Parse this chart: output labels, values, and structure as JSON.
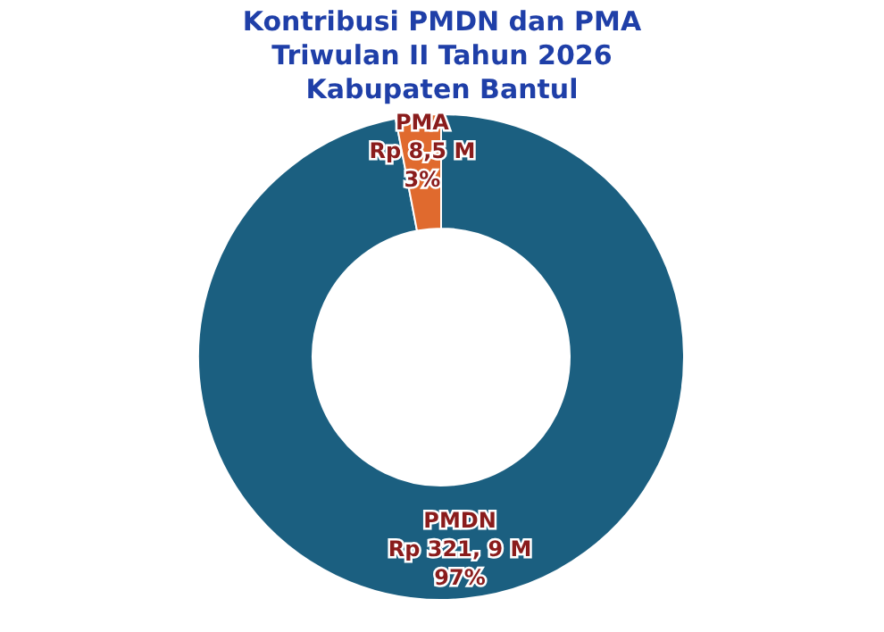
{
  "chart_data": {
    "type": "donut",
    "title": "Kontribusi PMDN dan PMA\nTriwulan II Tahun 2026\nKabupaten Bantul",
    "categories": [
      "PMDN",
      "PMA"
    ],
    "values": [
      97,
      3
    ],
    "value_labels": [
      "97%",
      "3%"
    ],
    "annotations": [
      "Rp 321, 9 M",
      "Rp 8,5 M"
    ],
    "colors": [
      "#1b5f80",
      "#e06a2e"
    ]
  }
}
